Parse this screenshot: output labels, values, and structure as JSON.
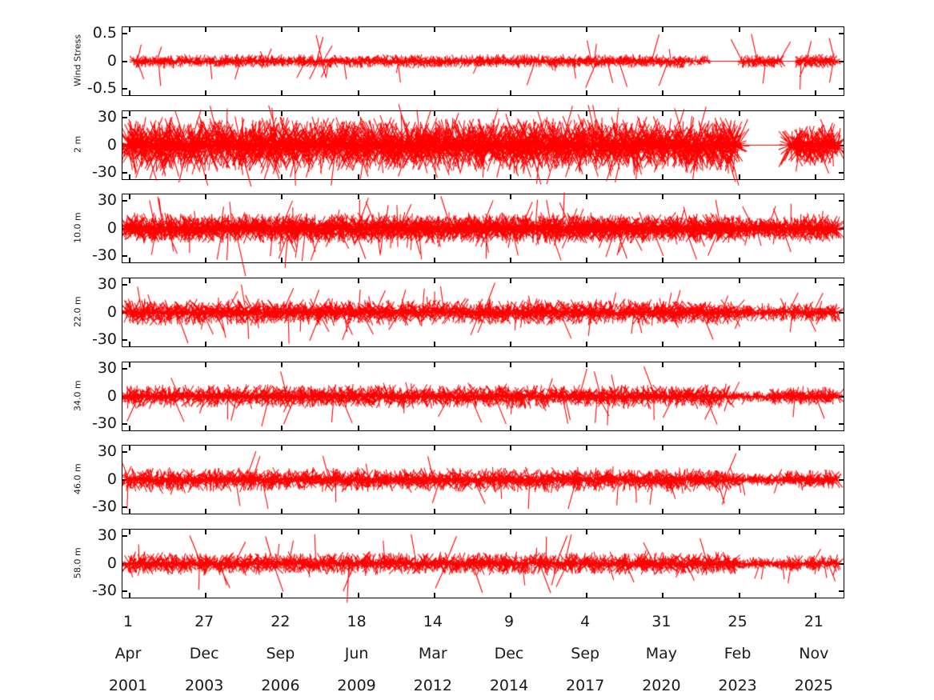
{
  "figure": {
    "background": "#ffffff"
  },
  "chart_data": {
    "type": "line",
    "subtype": "stick-vector-timeseries",
    "description": "Seven vertically stacked stick (vector) time-series panels: wind stress on top, then current velocity at six depths, plotted in red against a ~25-year time axis.",
    "stick_color": "#ff0000",
    "axis_color": "#000000",
    "label_color": "#1a1a1a",
    "legend": "none",
    "grid": "off",
    "x_axis": {
      "tick_note": "date ticks spaced 1000 days apart, shown as day / month / year stacked rows",
      "ticks": [
        {
          "day": "1",
          "month": "Apr",
          "year": "2001"
        },
        {
          "day": "27",
          "month": "Dec",
          "year": "2003"
        },
        {
          "day": "22",
          "month": "Sep",
          "year": "2006"
        },
        {
          "day": "18",
          "month": "Jun",
          "year": "2009"
        },
        {
          "day": "14",
          "month": "Mar",
          "year": "2012"
        },
        {
          "day": "9",
          "month": "Dec",
          "year": "2014"
        },
        {
          "day": "4",
          "month": "Sep",
          "year": "2017"
        },
        {
          "day": "31",
          "month": "May",
          "year": "2020"
        },
        {
          "day": "25",
          "month": "Feb",
          "year": "2023"
        },
        {
          "day": "21",
          "month": "Nov",
          "year": "2025"
        }
      ]
    },
    "panels": [
      {
        "label": "Wind Stress",
        "y_ticks": [
          "0.5",
          "0",
          "-0.5"
        ],
        "y_tick_values": [
          0.5,
          0,
          -0.5
        ],
        "ylim": [
          -0.62,
          0.62
        ],
        "core_amplitude": 0.09,
        "spike_amplitude": 0.5,
        "spike_prob": 0.012,
        "sticks_per_step": 2,
        "seed": 11,
        "segments": [
          {
            "from": 0.015,
            "to": 0.78,
            "density": 1.0,
            "amp": 1.0
          },
          {
            "from": 0.78,
            "to": 0.813,
            "density": 0.5,
            "amp": 0.9
          },
          {
            "from": 0.858,
            "to": 0.913,
            "density": 1.0,
            "amp": 1.0
          },
          {
            "from": 0.935,
            "to": 0.99,
            "density": 1.0,
            "amp": 1.1
          }
        ],
        "baseline_segments": [
          [
            0.79,
            0.862
          ],
          [
            0.905,
            0.94
          ]
        ]
      },
      {
        "label": "2 m",
        "y_ticks": [
          "30",
          "0",
          "-30"
        ],
        "y_tick_values": [
          30,
          0,
          -30
        ],
        "ylim": [
          -37,
          37
        ],
        "core_amplitude": 22,
        "spike_amplitude": 45,
        "spike_prob": 0.025,
        "sticks_per_step": 3,
        "seed": 22,
        "segments": [
          {
            "from": 0.004,
            "to": 0.855,
            "density": 1.0,
            "amp": 1.0
          },
          {
            "from": 0.925,
            "to": 0.992,
            "density": 1.0,
            "amp": 0.75
          }
        ],
        "baseline_segments": [
          [
            0.855,
            0.925
          ]
        ]
      },
      {
        "label": "10.0 m",
        "y_ticks": [
          "30",
          "0",
          "-30"
        ],
        "y_tick_values": [
          30,
          0,
          -30
        ],
        "ylim": [
          -37,
          37
        ],
        "core_amplitude": 12,
        "spike_amplitude": 36,
        "spike_prob": 0.02,
        "sticks_per_step": 3,
        "seed": 33,
        "segments": [
          {
            "from": 0.004,
            "to": 0.85,
            "density": 1.0,
            "amp": 1.0
          },
          {
            "from": 0.85,
            "to": 0.93,
            "density": 0.95,
            "amp": 0.8
          },
          {
            "from": 0.93,
            "to": 0.992,
            "density": 1.0,
            "amp": 0.9
          }
        ],
        "baseline_segments": []
      },
      {
        "label": "22.0 m",
        "y_ticks": [
          "30",
          "0",
          "-30"
        ],
        "y_tick_values": [
          30,
          0,
          -30
        ],
        "ylim": [
          -37,
          37
        ],
        "core_amplitude": 10.5,
        "spike_amplitude": 34,
        "spike_prob": 0.014,
        "sticks_per_step": 2,
        "seed": 44,
        "segments": [
          {
            "from": 0.004,
            "to": 0.85,
            "density": 1.0,
            "amp": 1.0
          },
          {
            "from": 0.85,
            "to": 0.93,
            "density": 0.9,
            "amp": 0.65
          },
          {
            "from": 0.93,
            "to": 0.992,
            "density": 1.0,
            "amp": 0.85
          }
        ],
        "baseline_segments": []
      },
      {
        "label": "34.0 m",
        "y_ticks": [
          "30",
          "0",
          "-30"
        ],
        "y_tick_values": [
          30,
          0,
          -30
        ],
        "ylim": [
          -37,
          37
        ],
        "core_amplitude": 9.5,
        "spike_amplitude": 34,
        "spike_prob": 0.013,
        "sticks_per_step": 2,
        "seed": 55,
        "segments": [
          {
            "from": 0.004,
            "to": 0.84,
            "density": 1.0,
            "amp": 1.0
          },
          {
            "from": 0.84,
            "to": 0.9,
            "density": 0.8,
            "amp": 0.5
          },
          {
            "from": 0.9,
            "to": 0.992,
            "density": 1.0,
            "amp": 0.8
          }
        ],
        "baseline_segments": []
      },
      {
        "label": "46.0 m",
        "y_ticks": [
          "30",
          "0",
          "-30"
        ],
        "y_tick_values": [
          30,
          0,
          -30
        ],
        "ylim": [
          -37,
          37
        ],
        "core_amplitude": 9.5,
        "spike_amplitude": 32,
        "spike_prob": 0.012,
        "sticks_per_step": 2,
        "seed": 66,
        "segments": [
          {
            "from": 0.004,
            "to": 0.85,
            "density": 1.0,
            "amp": 1.0
          },
          {
            "from": 0.85,
            "to": 0.92,
            "density": 0.85,
            "amp": 0.55
          },
          {
            "from": 0.92,
            "to": 0.992,
            "density": 1.0,
            "amp": 0.8
          }
        ],
        "baseline_segments": []
      },
      {
        "label": "58.0 m",
        "y_ticks": [
          "30",
          "0",
          "-30"
        ],
        "y_tick_values": [
          30,
          0,
          -30
        ],
        "ylim": [
          -37,
          37
        ],
        "core_amplitude": 9,
        "spike_amplitude": 32,
        "spike_prob": 0.012,
        "sticks_per_step": 2,
        "seed": 77,
        "segments": [
          {
            "from": 0.004,
            "to": 0.85,
            "density": 1.0,
            "amp": 1.0
          },
          {
            "from": 0.85,
            "to": 0.92,
            "density": 0.85,
            "amp": 0.55
          },
          {
            "from": 0.92,
            "to": 0.992,
            "density": 1.0,
            "amp": 0.75
          }
        ],
        "baseline_segments": []
      }
    ]
  }
}
